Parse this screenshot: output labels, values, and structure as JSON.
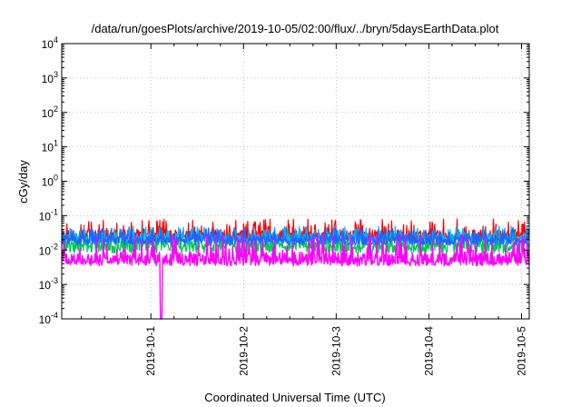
{
  "chart_data": {
    "type": "line",
    "title": "/data/run/goesPlots/archive/2019-10-05/02:00/flux/../bryn/5daysEarthData.plot",
    "xlabel": "Coordinated Universal Time (UTC)",
    "ylabel": "cGy/day",
    "yscale": "log",
    "ylim": [
      0.0001,
      10000
    ],
    "xlim": [
      "2019-09-30T00:55",
      "2019-10-05T02:00"
    ],
    "grid": true,
    "x_ticks": [
      "2019-10-1",
      "2019-10-2",
      "2019-10-3",
      "2019-10-4",
      "2019-10-5"
    ],
    "y_ticks": [
      {
        "value": 0.0001,
        "exp": "-4"
      },
      {
        "value": 0.001,
        "exp": "-3"
      },
      {
        "value": 0.01,
        "exp": "-2"
      },
      {
        "value": 0.1,
        "exp": "-1"
      },
      {
        "value": 1,
        "exp": "0"
      },
      {
        "value": 10,
        "exp": "1"
      },
      {
        "value": 100,
        "exp": "2"
      },
      {
        "value": 1000,
        "exp": "3"
      },
      {
        "value": 10000,
        "exp": "4"
      }
    ],
    "tick_base": "10",
    "series": [
      {
        "color": "#ff0000",
        "baseline": 0.03,
        "peak": 0.08,
        "trough": 0.018
      },
      {
        "color": "#00c853",
        "baseline": 0.015,
        "peak": 0.035,
        "trough": 0.008
      },
      {
        "color": "#00b0ff",
        "baseline": 0.025,
        "peak": 0.05,
        "trough": 0.015
      },
      {
        "color": "#1e64ff",
        "baseline": 0.022,
        "peak": 0.045,
        "trough": 0.014
      },
      {
        "color": "#ff00ff",
        "baseline": 0.006,
        "peak": 0.03,
        "trough": 0.0035,
        "dip": {
          "x": "2019-10-01T02:40",
          "y": 0.0001
        }
      }
    ]
  }
}
